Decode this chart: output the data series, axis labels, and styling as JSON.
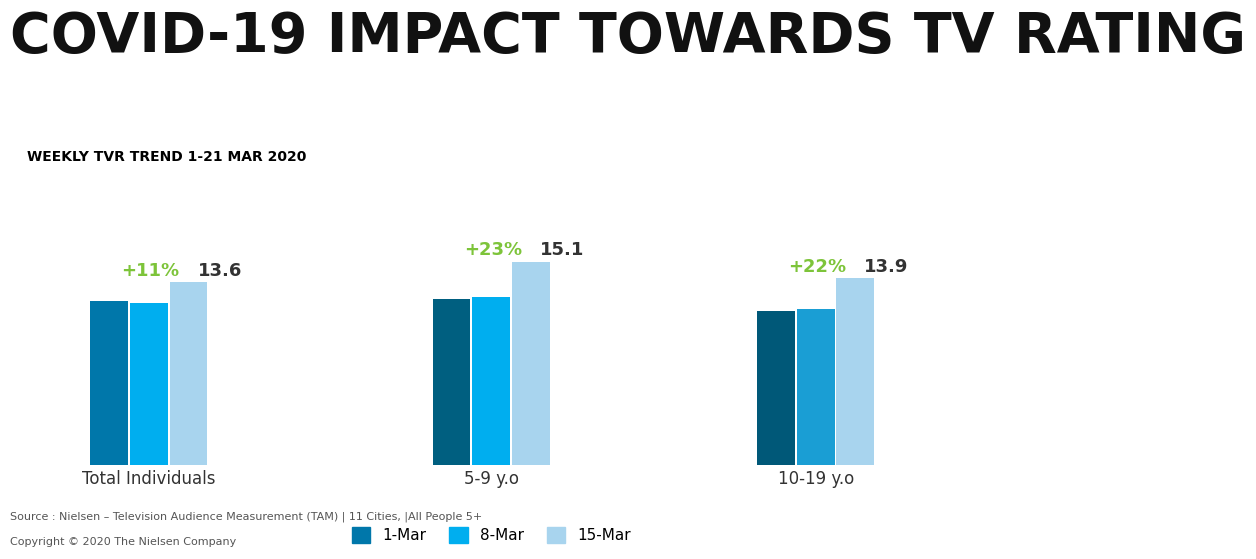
{
  "title": "COVID-19 IMPACT TOWARDS TV RATING",
  "subtitle_box_text": "WEEKLY TVR TREND 1-21 MAR 2020",
  "subtitle_box_color": "#F5A623",
  "groups": [
    "Total Individuals",
    "5-9 y.o",
    "10-19 y.o"
  ],
  "series_labels": [
    "1-Mar",
    "8-Mar",
    "15-Mar"
  ],
  "values": [
    [
      12.2,
      12.0,
      13.6
    ],
    [
      12.3,
      12.5,
      15.1
    ],
    [
      11.4,
      11.6,
      13.9
    ]
  ],
  "group_colors": [
    [
      "#0077AA",
      "#00AEEF",
      "#A8D4EE"
    ],
    [
      "#005F80",
      "#00AEEF",
      "#A8D4EE"
    ],
    [
      "#005878",
      "#1a9ed4",
      "#A8D4EE"
    ]
  ],
  "annotations": [
    {
      "group": 0,
      "pct_text": "+11%",
      "val_text": "13.6"
    },
    {
      "group": 1,
      "pct_text": "+23%",
      "val_text": "15.1"
    },
    {
      "group": 2,
      "pct_text": "+22%",
      "val_text": "13.9"
    }
  ],
  "pct_color": "#7DC43A",
  "val_color": "#333333",
  "background_color": "#FFFFFF",
  "source_text": "Source : Nielsen – Television Audience Measurement (TAM) | 11 Cities, |All People 5+",
  "copyright_text": "Copyright © 2020 The Nielsen Company",
  "footer_color": "#555555",
  "title_fontsize": 40,
  "subtitle_fontsize": 10,
  "label_fontsize": 12,
  "legend_fontsize": 11,
  "annotation_pct_fontsize": 13,
  "annotation_val_fontsize": 13,
  "footer_fontsize": 8,
  "ylim": [
    0,
    18
  ],
  "bar_width": 0.22,
  "group_centers": [
    1.0,
    2.9,
    4.7
  ]
}
